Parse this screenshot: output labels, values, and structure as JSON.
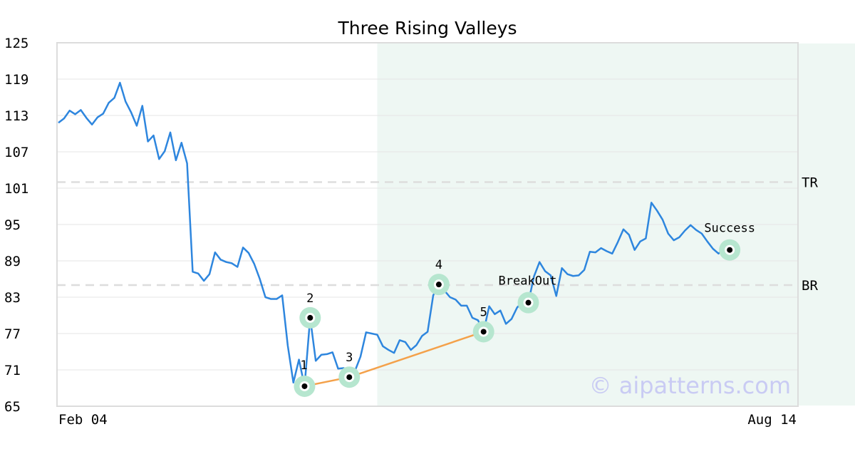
{
  "chart_data": {
    "type": "line",
    "title": "Three Rising Valleys",
    "xlabel": "",
    "ylabel": "",
    "ylim": [
      65,
      125
    ],
    "y_ticks": [
      "125",
      "119",
      "113",
      "107",
      "101",
      "95",
      "89",
      "83",
      "77",
      "71",
      "65"
    ],
    "x_ticks": [
      "Feb 04",
      "Aug 14"
    ],
    "grid": "horizontal",
    "highlight_range": {
      "from_index": 57,
      "to_index": 168,
      "color": "#eef7f3"
    },
    "horizontal_lines": [
      {
        "label": "TR",
        "value": 102,
        "style": "dashed",
        "color": "#dddddd"
      },
      {
        "label": "BR",
        "value": 85,
        "style": "dashed",
        "color": "#dddddd"
      }
    ],
    "series": [
      {
        "color": "#2e86de",
        "values": [
          111.8,
          112.5,
          113.8,
          113.2,
          113.9,
          112.6,
          111.5,
          112.7,
          113.3,
          115.1,
          115.9,
          118.4,
          115.3,
          113.5,
          111.3,
          114.6,
          108.7,
          109.7,
          105.8,
          107.1,
          110.2,
          105.6,
          108.5,
          105.1,
          87.2,
          86.9,
          85.7,
          86.8,
          90.4,
          89.2,
          88.8,
          88.6,
          88.0,
          91.2,
          90.3,
          88.5,
          86.0,
          83.0,
          82.7,
          82.7,
          83.3,
          75.0,
          68.9,
          72.7,
          68.3,
          79.6,
          72.5,
          73.5,
          73.6,
          73.9,
          71.2,
          71.3,
          69.8,
          70.8,
          73.2,
          77.2,
          77.0,
          76.8,
          74.9,
          74.3,
          73.8,
          75.9,
          75.6,
          74.3,
          75.1,
          76.6,
          77.3,
          83.3,
          85.1,
          84.1,
          83.0,
          82.6,
          81.6,
          81.6,
          79.6,
          79.2,
          77.3,
          81.5,
          80.2,
          80.8,
          78.6,
          79.4,
          81.3,
          82.2,
          82.1,
          86.4,
          88.8,
          87.3,
          86.6,
          83.2,
          87.8,
          86.8,
          86.5,
          86.6,
          87.5,
          90.5,
          90.4,
          91.1,
          90.6,
          90.2,
          92.1,
          94.2,
          93.3,
          90.8,
          92.2,
          92.7,
          98.6,
          97.3,
          95.8,
          93.5,
          92.4,
          92.9,
          94.0,
          94.9,
          94.1,
          93.5,
          92.2,
          91.0,
          90.2,
          90.9,
          90.8,
          90.8
        ],
        "dates_note": ""
      },
      {
        "color": "#f4a14a",
        "connects_points": [
          "1",
          "3",
          "5"
        ]
      }
    ],
    "points": [
      {
        "label": "1",
        "index": 44,
        "value": 68.3,
        "label_pos": "above-left"
      },
      {
        "label": "2",
        "index": 45,
        "value": 79.6,
        "label_pos": "above"
      },
      {
        "label": "3",
        "index": 52,
        "value": 69.8,
        "label_pos": "above"
      },
      {
        "label": "4",
        "index": 68,
        "value": 85.1,
        "label_pos": "above"
      },
      {
        "label": "5",
        "index": 76,
        "value": 77.3,
        "label_pos": "above"
      },
      {
        "label": "BreakOut",
        "index": 84,
        "value": 82.1,
        "label_pos": "above-left"
      },
      {
        "label": "Success",
        "index": 120,
        "value": 90.8,
        "label_pos": "above"
      }
    ],
    "marker_colors": {
      "ring": "#b6e6cf",
      "center": "#000000",
      "inner": "#ffffff"
    }
  },
  "watermark": "© aipatterns.com"
}
